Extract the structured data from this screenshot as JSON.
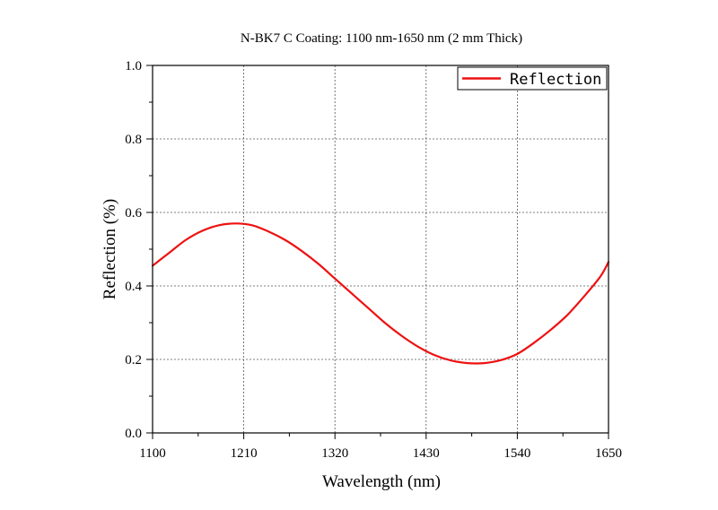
{
  "chart_data": {
    "type": "line",
    "title": "N-BK7 C Coating: 1100 nm-1650 nm (2 mm Thick)",
    "xlabel": "Wavelength (nm)",
    "ylabel": "Reflection (%)",
    "xlim": [
      1100,
      1650
    ],
    "ylim": [
      0,
      1.0
    ],
    "xticks": [
      1100,
      1210,
      1320,
      1430,
      1540,
      1650
    ],
    "xtick_labels": [
      "1100",
      "1210",
      "1320",
      "1430",
      "1540",
      "1650"
    ],
    "yticks": [
      0,
      0.2,
      0.4,
      0.6,
      0.8,
      1.0
    ],
    "ytick_labels": [
      "0.0",
      "0.2",
      "0.4",
      "0.6",
      "0.8",
      "1.0"
    ],
    "grid": true,
    "legend_position": "top-right",
    "colors": {
      "series": "#ee1111"
    },
    "series": [
      {
        "name": "Reflection",
        "x": [
          1100,
          1120,
          1140,
          1160,
          1180,
          1200,
          1220,
          1240,
          1260,
          1280,
          1300,
          1320,
          1340,
          1360,
          1380,
          1400,
          1420,
          1440,
          1460,
          1480,
          1500,
          1520,
          1540,
          1560,
          1580,
          1600,
          1620,
          1640,
          1650
        ],
        "values": [
          0.455,
          0.49,
          0.525,
          0.55,
          0.565,
          0.57,
          0.565,
          0.548,
          0.525,
          0.495,
          0.46,
          0.42,
          0.38,
          0.34,
          0.3,
          0.265,
          0.235,
          0.212,
          0.197,
          0.19,
          0.19,
          0.198,
          0.215,
          0.245,
          0.28,
          0.32,
          0.37,
          0.425,
          0.465
        ]
      }
    ]
  }
}
